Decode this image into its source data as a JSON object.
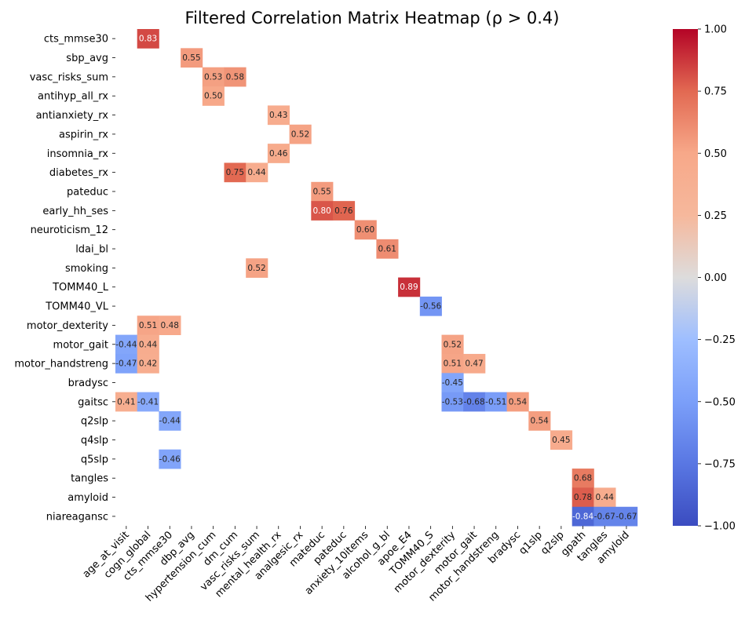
{
  "chart_data": {
    "type": "heatmap",
    "title": "Filtered Correlation Matrix Heatmap (ρ > 0.4)",
    "rows": [
      "cts_mmse30",
      "sbp_avg",
      "vasc_risks_sum",
      "antihyp_all_rx",
      "antianxiety_rx",
      "aspirin_rx",
      "insomnia_rx",
      "diabetes_rx",
      "pateduc",
      "early_hh_ses",
      "neuroticism_12",
      "ldai_bl",
      "smoking",
      "TOMM40_L",
      "TOMM40_VL",
      "motor_dexterity",
      "motor_gait",
      "motor_handstreng",
      "bradysc",
      "gaitsc",
      "q2slp",
      "q4slp",
      "q5slp",
      "tangles",
      "amyloid",
      "niareagansc"
    ],
    "columns": [
      "age_at_visit",
      "cogn_global",
      "cts_mmse30",
      "dbp_avg",
      "hypertension_cum",
      "dm_cum",
      "vasc_risks_sum",
      "mental_health_rx",
      "analgesic_rx",
      "mateduc",
      "pateduc",
      "anxiety_10items",
      "alcohol_g_bl",
      "apoe_E4",
      "TOMM40_S",
      "motor_dexterity",
      "motor_gait",
      "motor_handstreng",
      "bradysc",
      "q1slp",
      "q2slp",
      "gpath",
      "tangles",
      "amyloid"
    ],
    "cells": [
      {
        "row": 0,
        "col": 1,
        "value": 0.83,
        "label": "0.83"
      },
      {
        "row": 1,
        "col": 3,
        "value": 0.55,
        "label": "0.55"
      },
      {
        "row": 2,
        "col": 4,
        "value": 0.53,
        "label": "0.53"
      },
      {
        "row": 2,
        "col": 5,
        "value": 0.58,
        "label": "0.58"
      },
      {
        "row": 3,
        "col": 4,
        "value": 0.5,
        "label": "0.50"
      },
      {
        "row": 4,
        "col": 7,
        "value": 0.43,
        "label": "0.43"
      },
      {
        "row": 5,
        "col": 8,
        "value": 0.52,
        "label": "0.52"
      },
      {
        "row": 6,
        "col": 7,
        "value": 0.46,
        "label": "0.46"
      },
      {
        "row": 7,
        "col": 5,
        "value": 0.75,
        "label": "0.75"
      },
      {
        "row": 7,
        "col": 6,
        "value": 0.44,
        "label": "0.44"
      },
      {
        "row": 8,
        "col": 9,
        "value": 0.55,
        "label": "0.55"
      },
      {
        "row": 9,
        "col": 9,
        "value": 0.8,
        "label": "0.80"
      },
      {
        "row": 9,
        "col": 10,
        "value": 0.76,
        "label": "0.76"
      },
      {
        "row": 10,
        "col": 11,
        "value": 0.6,
        "label": "0.60"
      },
      {
        "row": 11,
        "col": 12,
        "value": 0.61,
        "label": "0.61"
      },
      {
        "row": 12,
        "col": 6,
        "value": 0.52,
        "label": "0.52"
      },
      {
        "row": 13,
        "col": 13,
        "value": 0.89,
        "label": "0.89"
      },
      {
        "row": 14,
        "col": 14,
        "value": -0.56,
        "label": "-0.56"
      },
      {
        "row": 15,
        "col": 1,
        "value": 0.51,
        "label": "0.51"
      },
      {
        "row": 15,
        "col": 2,
        "value": 0.48,
        "label": "0.48"
      },
      {
        "row": 16,
        "col": 0,
        "value": -0.44,
        "label": "-0.44"
      },
      {
        "row": 16,
        "col": 1,
        "value": 0.44,
        "label": "0.44"
      },
      {
        "row": 16,
        "col": 15,
        "value": 0.52,
        "label": "0.52"
      },
      {
        "row": 17,
        "col": 0,
        "value": -0.47,
        "label": "-0.47"
      },
      {
        "row": 17,
        "col": 1,
        "value": 0.42,
        "label": "0.42"
      },
      {
        "row": 17,
        "col": 15,
        "value": 0.51,
        "label": "0.51"
      },
      {
        "row": 17,
        "col": 16,
        "value": 0.47,
        "label": "0.47"
      },
      {
        "row": 18,
        "col": 15,
        "value": -0.45,
        "label": "-0.45"
      },
      {
        "row": 19,
        "col": 0,
        "value": 0.41,
        "label": "0.41"
      },
      {
        "row": 19,
        "col": 1,
        "value": -0.41,
        "label": "-0.41"
      },
      {
        "row": 19,
        "col": 15,
        "value": -0.53,
        "label": "-0.53"
      },
      {
        "row": 19,
        "col": 16,
        "value": -0.68,
        "label": "-0.68"
      },
      {
        "row": 19,
        "col": 17,
        "value": -0.51,
        "label": "-0.51"
      },
      {
        "row": 19,
        "col": 18,
        "value": 0.54,
        "label": "0.54"
      },
      {
        "row": 20,
        "col": 2,
        "value": -0.44,
        "label": "-0.44"
      },
      {
        "row": 20,
        "col": 19,
        "value": 0.54,
        "label": "0.54"
      },
      {
        "row": 21,
        "col": 20,
        "value": 0.45,
        "label": "0.45"
      },
      {
        "row": 22,
        "col": 2,
        "value": -0.46,
        "label": "-0.46"
      },
      {
        "row": 23,
        "col": 21,
        "value": 0.68,
        "label": "0.68"
      },
      {
        "row": 24,
        "col": 21,
        "value": 0.78,
        "label": "0.78"
      },
      {
        "row": 24,
        "col": 22,
        "value": 0.44,
        "label": "0.44"
      },
      {
        "row": 25,
        "col": 21,
        "value": -0.84,
        "label": "-0.84"
      },
      {
        "row": 25,
        "col": 22,
        "value": -0.67,
        "label": "-0.67"
      },
      {
        "row": 25,
        "col": 23,
        "value": -0.67,
        "label": "-0.67"
      }
    ],
    "colorbar": {
      "colormap": "coolwarm",
      "vmin": -1.0,
      "vmax": 1.0,
      "ticks": [
        1.0,
        0.75,
        0.5,
        0.25,
        0.0,
        -0.25,
        -0.5,
        -0.75,
        -1.0
      ],
      "tick_labels": [
        "1.00",
        "0.75",
        "0.50",
        "0.25",
        "0.00",
        "−0.25",
        "−0.50",
        "−0.75",
        "−1.00"
      ]
    },
    "grid": false
  }
}
